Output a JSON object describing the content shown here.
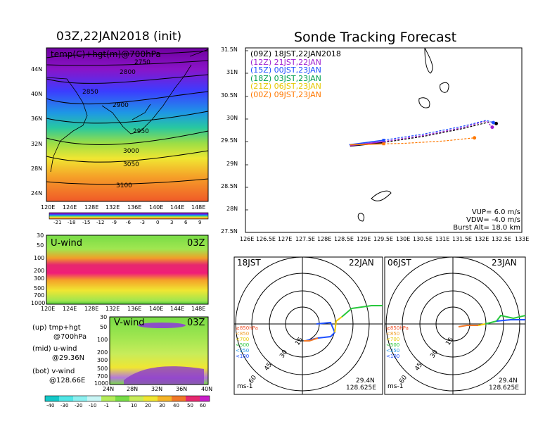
{
  "left_panel": {
    "title": "03Z,22JAN2018 (init)",
    "map_label": "temp(C)+hgt(m)@700hPa",
    "lat_ticks": [
      "44N",
      "40N",
      "36N",
      "32N",
      "28N",
      "24N"
    ],
    "lon_ticks": [
      "120E",
      "124E",
      "128E",
      "132E",
      "136E",
      "140E",
      "144E",
      "148E"
    ],
    "contour_labels": [
      "2750",
      "2800",
      "2850",
      "2900",
      "2950",
      "3000",
      "3050",
      "3100"
    ],
    "temp_colorbar": [
      "-21",
      "-18",
      "-15",
      "-12",
      "-9",
      "-6",
      "-3",
      "0",
      "3",
      "6",
      "9"
    ],
    "uwind": {
      "title": "U-wind",
      "time": "03Z",
      "p_ticks": [
        "30",
        "50",
        "100",
        "200",
        "300",
        "500",
        "700",
        "1000"
      ],
      "lon_ticks": [
        "120E",
        "124E",
        "128E",
        "132E",
        "136E",
        "140E",
        "144E",
        "148E"
      ]
    },
    "vwind": {
      "title": "V-wind",
      "time": "03Z",
      "p_ticks": [
        "30",
        "50",
        "100",
        "200",
        "300",
        "500",
        "700",
        "1000"
      ],
      "lat_ticks": [
        "24N",
        "28N",
        "32N",
        "36N",
        "40N"
      ]
    },
    "wind_colorbar": [
      "-40",
      "-30",
      "-20",
      "-10",
      "-1",
      "1",
      "10",
      "20",
      "30",
      "40",
      "50",
      "60"
    ],
    "legend": [
      {
        "tag": "(up)",
        "text": "tmp+hgt"
      },
      {
        "tag": "",
        "text": "@700hPa"
      },
      {
        "tag": "(mid)",
        "text": "u-wind"
      },
      {
        "tag": "",
        "text": "@29.36N"
      },
      {
        "tag": "(bot)",
        "text": "v-wind"
      },
      {
        "tag": "",
        "text": "@128.66E"
      }
    ]
  },
  "track_panel": {
    "title": "Sonde Tracking Forecast",
    "lat_ticks": [
      "31.5N",
      "31N",
      "30.5N",
      "30N",
      "29.5N",
      "29N",
      "28.5N",
      "28N",
      "27.5N"
    ],
    "lon_ticks": [
      "126E",
      "126.5E",
      "127E",
      "127.5E",
      "128E",
      "128.5E",
      "129E",
      "129.5E",
      "130E",
      "130.5E",
      "131E",
      "131.5E",
      "132E",
      "132.5E",
      "133E"
    ],
    "launches": [
      {
        "utc": "(09Z)",
        "local": "18JST,22JAN2018",
        "color": "#000000"
      },
      {
        "utc": "(12Z)",
        "local": "21JST,22JAN",
        "color": "#a020d0"
      },
      {
        "utc": "(15Z)",
        "local": "00JST,23JAN",
        "color": "#1e50ff"
      },
      {
        "utc": "(18Z)",
        "local": "03JST,23JAN",
        "color": "#00a050"
      },
      {
        "utc": "(21Z)",
        "local": "06JST,23JAN",
        "color": "#e6c800"
      },
      {
        "utc": "(00Z)",
        "local": "09JST,23JAN",
        "color": "#ff7800"
      }
    ],
    "params": [
      "VUP= 6.0 m/s",
      "VDW= -4.0 m/s",
      "Burst Alt= 18.0 km"
    ]
  },
  "hodographs": [
    {
      "time": "18JST",
      "date": "22JAN",
      "lat": "29.4N",
      "lon": "128.625E",
      "unit": "ms-1"
    },
    {
      "time": "06JST",
      "date": "23JAN",
      "lat": "29.4N",
      "lon": "128.625E",
      "unit": "ms-1"
    }
  ],
  "ring_labels": [
    "15",
    "30",
    "45",
    "60"
  ],
  "hodo_legend": [
    "≥850hPa",
    "<850",
    "<700",
    "<500",
    "<250",
    "<100"
  ],
  "chart_data": [
    {
      "type": "heatmap",
      "title": "03Z,22JAN2018 (init)",
      "subtitle": "temp(C)+hgt(m)@700hPa",
      "x_range_deg": [
        120,
        150
      ],
      "y_range_deg": [
        22,
        47
      ],
      "contours_m": [
        2750,
        2800,
        2850,
        2900,
        2950,
        3000,
        3050,
        3100
      ],
      "colorbar": [
        -21,
        -18,
        -15,
        -12,
        -9,
        -6,
        -3,
        0,
        3,
        6,
        9
      ]
    },
    {
      "type": "heatmap",
      "title": "U-wind",
      "x": "longitude 120E-150E",
      "y_hPa": [
        30,
        50,
        100,
        200,
        300,
        500,
        700,
        1000
      ]
    },
    {
      "type": "heatmap",
      "title": "V-wind",
      "x": "latitude 24N-40N",
      "y_hPa": [
        30,
        50,
        100,
        200,
        300,
        500,
        700,
        1000
      ],
      "colorbar": [
        -40,
        -30,
        -20,
        -10,
        -1,
        1,
        10,
        20,
        30,
        40,
        50,
        60
      ]
    },
    {
      "type": "line",
      "title": "Sonde Tracking Forecast",
      "xlim": [
        126,
        133
      ],
      "ylim": [
        27.5,
        31.5
      ],
      "series": [
        {
          "name": "(09Z) 18JST,22JAN2018",
          "x": [
            128.65,
            129.5,
            130.5,
            131.5,
            132.2,
            132.35
          ],
          "y": [
            29.37,
            29.45,
            29.58,
            29.75,
            29.9,
            29.86
          ]
        },
        {
          "name": "(12Z) 21JST,22JAN",
          "x": [
            128.65,
            129.5,
            130.5,
            131.5,
            132.1,
            132.25
          ],
          "y": [
            29.38,
            29.47,
            29.6,
            29.77,
            29.92,
            29.78
          ]
        },
        {
          "name": "(15Z) 00JST,23JAN",
          "x": [
            128.63,
            129.5,
            130.5,
            131.5,
            132.1,
            132.28
          ],
          "y": [
            29.4,
            29.5,
            29.63,
            29.8,
            29.93,
            29.88
          ]
        },
        {
          "name": "(00Z) 09JST,23JAN",
          "x": [
            128.65,
            129.5,
            130.0,
            131.0,
            131.8
          ],
          "y": [
            29.4,
            29.42,
            29.43,
            29.48,
            29.55
          ]
        }
      ],
      "annotations": [
        "VUP= 6.0 m/s",
        "VDW= -4.0 m/s",
        "Burst Alt= 18.0 km"
      ]
    }
  ]
}
